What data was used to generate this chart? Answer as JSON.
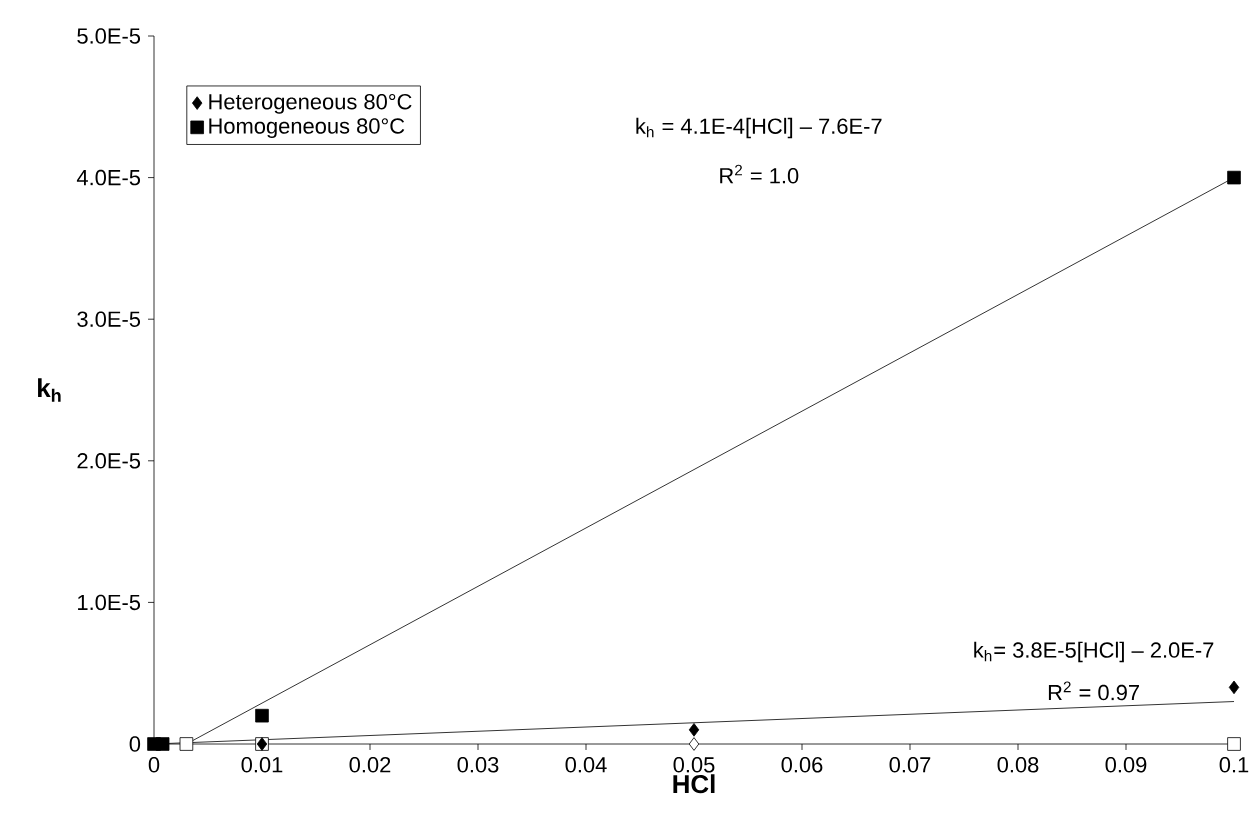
{
  "chart_data": {
    "type": "scatter",
    "xlabel": "**HCl**",
    "ylabel": "**k$_{h}$**",
    "xlim": [
      0,
      0.1
    ],
    "ylim": [
      0,
      5e-05
    ],
    "xticks": [
      0,
      0.01,
      0.02,
      0.03,
      0.04,
      0.05,
      0.06,
      0.07,
      0.08,
      0.09,
      0.1
    ],
    "yticks": [
      0,
      {
        "value": 1e-05,
        "label": "1.0E-5"
      },
      {
        "value": 2e-05,
        "label": "2.0E-5"
      },
      {
        "value": 3e-05,
        "label": "3.0E-5"
      },
      {
        "value": 4e-05,
        "label": "4.0E-5"
      },
      {
        "value": 5e-05,
        "label": "5.0E-5"
      }
    ],
    "grid": false,
    "legend": "top left",
    "series": [
      {
        "type": "line",
        "marker": "none",
        "color": "#000000",
        "x": [
          0.003,
          0.1
        ],
        "values": [
          0,
          4e-05
        ]
      },
      {
        "type": "line",
        "marker": "none",
        "color": "#000000",
        "x": [
          0,
          0.1
        ],
        "values": [
          0,
          3e-06
        ]
      },
      {
        "marker": "square",
        "color": "#ffffff",
        "x": [
          0.003,
          0.01,
          0.1
        ],
        "values": [
          0,
          0,
          0
        ]
      },
      {
        "marker": "diamond",
        "color": "#ffffff",
        "x": [
          0.05
        ],
        "values": [
          0
        ]
      },
      {
        "name": "Heterogeneous 80°C",
        "marker": "diamond",
        "color": "#000000",
        "x": [
          0.01,
          0.05,
          0.1
        ],
        "values": [
          0,
          1e-06,
          4e-06
        ]
      },
      {
        "name": "Homogeneous 80°C",
        "marker": "square",
        "color": "#000000",
        "x": [
          0,
          0.0008,
          0.01,
          0.1
        ],
        "values": [
          0,
          0,
          2e-06,
          4e-05
        ]
      }
    ],
    "annotations": [
      "k$_{h}$ = 4.1E-4[HCl] – 7.6E-7",
      "R$^{2}$ = 1.0",
      "k$_{h}$= 3.8E-5[HCl] – 2.0E-7",
      "R$^{2}$ = 0.97"
    ]
  }
}
